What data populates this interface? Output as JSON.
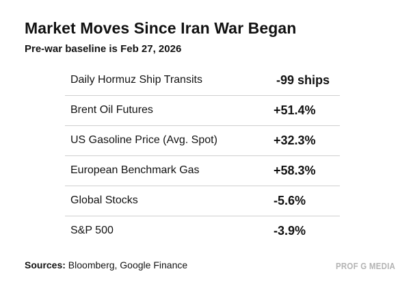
{
  "header": {
    "title": "Market Moves Since Iran War Began",
    "subtitle": "Pre-war baseline is Feb 27, 2026"
  },
  "table": {
    "rows": [
      {
        "label": "Daily Hormuz Ship Transits",
        "value": "-99 ships"
      },
      {
        "label": "Brent Oil Futures",
        "value": "+51.4%"
      },
      {
        "label": "US Gasoline Price (Avg. Spot)",
        "value": "+32.3%"
      },
      {
        "label": "European Benchmark Gas",
        "value": "+58.3%"
      },
      {
        "label": "Global Stocks",
        "value": "-5.6%"
      },
      {
        "label": "S&P 500",
        "value": "-3.9%"
      }
    ]
  },
  "footer": {
    "sources_label": "Sources:",
    "sources_text": " Bloomberg, Google Finance",
    "brand": "PROF G MEDIA"
  }
}
